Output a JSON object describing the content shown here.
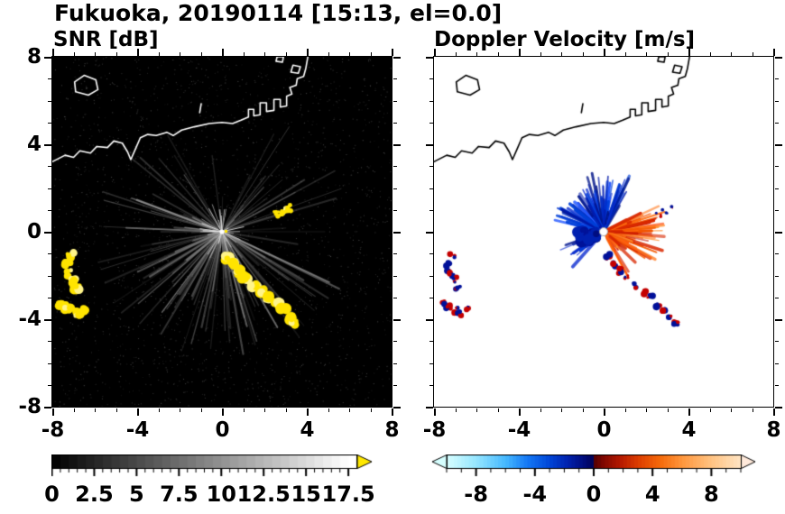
{
  "title": "Fukuoka, 20190114 [15:13, el=0.0]",
  "panels": {
    "snr": {
      "title": "SNR [dB]",
      "background": "#000000"
    },
    "doppler": {
      "title": "Doppler Velocity [m/s]",
      "background": "#ffffff"
    }
  },
  "axes": {
    "xlim": [
      -8,
      8
    ],
    "ylim": [
      -8,
      8
    ],
    "xticks": [
      "-8",
      "-4",
      "0",
      "4",
      "8"
    ],
    "yticks": [
      "8",
      "4",
      "0",
      "-4",
      "-8"
    ],
    "minor_tick_step": 1
  },
  "colorbars": {
    "snr": {
      "min": 0,
      "max": 18,
      "minor_step": 0.5,
      "tick_values": [
        0,
        2.5,
        5,
        7.5,
        10,
        12.5,
        15,
        17.5
      ],
      "tick_labels": [
        "0",
        "2.5",
        "5",
        "7.5",
        "10",
        "12.5",
        "15",
        "17.5"
      ],
      "palette": "black-to-white grayscale",
      "over_color": "#ffe800"
    },
    "doppler": {
      "min": -10,
      "max": 10,
      "minor_step": 1,
      "tick_values": [
        -8,
        -4,
        0,
        4,
        8
      ],
      "tick_labels": [
        "-8",
        "-4",
        "0",
        "4",
        "8"
      ],
      "palette": "light-cyan / blue (negative) to dark red / orange (positive)",
      "under_color": "#d6ffff",
      "over_color": "#ffe9da"
    }
  },
  "chart_data": {
    "type": "heatmap",
    "subtype": "radar_ppi_pair",
    "title": "Fukuoka, 20190114 [15:13, el=0.0]",
    "xlim": [
      -8,
      8
    ],
    "ylim": [
      -8,
      8
    ],
    "xticks": [
      -8,
      -4,
      0,
      4,
      8
    ],
    "yticks": [
      -8,
      -4,
      0,
      4,
      8
    ],
    "radar_center": [
      0,
      0
    ],
    "panels": [
      {
        "id": "snr",
        "title": "SNR [dB]",
        "background": "#000000",
        "coast_color": "#ffffff",
        "colorbar": {
          "min": 0,
          "max": 18,
          "major_ticks": [
            0,
            2.5,
            5,
            7.5,
            10,
            12.5,
            15,
            17.5
          ],
          "minor_step": 0.5,
          "palette": "grayscale",
          "over_arrow_color": "#ffe800"
        },
        "description": "grayscale radial clutter fan centered on radar; saturated yellow (>17.5 dB) patches at the feature locations"
      },
      {
        "id": "doppler",
        "title": "Doppler Velocity [m/s]",
        "background": "#ffffff",
        "coast_color": "#000000",
        "colorbar": {
          "min": -10,
          "max": 10,
          "major_ticks": [
            -8,
            -4,
            0,
            4,
            8
          ],
          "minor_step": 1,
          "under_arrow_color": "#d6ffff",
          "over_arrow_color": "#ffe9da"
        },
        "description": "negative (blue, about -8..-3 m/s) echoes in the up / upper-left sector, positive (orange-red, about +3..+8 m/s) in the right sector; red-blue speckles at feature locations"
      }
    ],
    "coastline": [
      [
        -8,
        3.2
      ],
      [
        -7.4,
        3.5
      ],
      [
        -7.0,
        3.4
      ],
      [
        -6.7,
        3.7
      ],
      [
        -6.2,
        3.6
      ],
      [
        -5.9,
        3.9
      ],
      [
        -5.4,
        3.85
      ],
      [
        -5.1,
        4.15
      ],
      [
        -4.7,
        4.05
      ],
      [
        -4.45,
        3.65
      ],
      [
        -4.3,
        3.3
      ],
      [
        -4.05,
        3.85
      ],
      [
        -3.85,
        4.3
      ],
      [
        -3.5,
        4.45
      ],
      [
        -3.1,
        4.4
      ],
      [
        -2.6,
        4.55
      ],
      [
        -2.3,
        4.4
      ],
      [
        -1.9,
        4.65
      ],
      [
        -1.3,
        4.8
      ],
      [
        -0.6,
        4.95
      ],
      [
        0,
        5.0
      ],
      [
        0.5,
        4.95
      ],
      [
        0.9,
        5.1
      ],
      [
        1.25,
        5.25
      ],
      [
        1.25,
        5.6
      ],
      [
        1.5,
        5.6
      ],
      [
        1.5,
        5.3
      ],
      [
        1.8,
        5.35
      ],
      [
        1.8,
        5.9
      ],
      [
        2.1,
        5.9
      ],
      [
        2.1,
        5.5
      ],
      [
        2.45,
        5.55
      ],
      [
        2.45,
        6.05
      ],
      [
        2.75,
        6.05
      ],
      [
        2.75,
        5.7
      ],
      [
        3.05,
        5.75
      ],
      [
        3.05,
        6.2
      ],
      [
        3.3,
        6.3
      ],
      [
        3.2,
        6.6
      ],
      [
        3.5,
        6.7
      ],
      [
        3.55,
        7.0
      ],
      [
        3.85,
        7.1
      ],
      [
        3.95,
        7.45
      ],
      [
        4.05,
        8.0
      ]
    ],
    "island": [
      [
        -6.9,
        6.4
      ],
      [
        -6.3,
        6.25
      ],
      [
        -5.85,
        6.5
      ],
      [
        -5.95,
        6.95
      ],
      [
        -6.5,
        7.15
      ],
      [
        -6.95,
        6.85
      ]
    ],
    "dock_shapes": [
      [
        [
          3.25,
          7.3
        ],
        [
          3.6,
          7.25
        ],
        [
          3.7,
          7.55
        ],
        [
          3.35,
          7.62
        ]
      ],
      [
        [
          2.55,
          7.8
        ],
        [
          2.85,
          7.75
        ],
        [
          2.9,
          8.0
        ],
        [
          2.6,
          8.0
        ]
      ],
      [
        [
          -1.05,
          5.45
        ],
        [
          -0.98,
          5.85
        ]
      ]
    ],
    "features": {
      "west_arc": [
        [
          -7.15,
          -1.1
        ],
        [
          -7.3,
          -1.5
        ],
        [
          -7.25,
          -1.9
        ],
        [
          -7.0,
          -2.2
        ],
        [
          -6.85,
          -2.55
        ]
      ],
      "west_blob": [
        [
          -7.6,
          -3.25
        ],
        [
          -7.3,
          -3.45
        ],
        [
          -7.0,
          -3.6
        ],
        [
          -6.75,
          -3.75
        ],
        [
          -6.4,
          -3.5
        ]
      ],
      "southeast_chain": [
        [
          0.2,
          -1.15
        ],
        [
          0.5,
          -1.5
        ],
        [
          0.8,
          -1.8
        ],
        [
          1.1,
          -2.1
        ],
        [
          1.5,
          -2.45
        ],
        [
          1.9,
          -2.75
        ],
        [
          2.2,
          -3.0
        ],
        [
          2.6,
          -3.35
        ],
        [
          2.9,
          -3.6
        ],
        [
          3.2,
          -3.9
        ],
        [
          3.4,
          -4.15
        ]
      ],
      "northeast_streak": [
        [
          2.6,
          0.8
        ],
        [
          2.9,
          0.95
        ],
        [
          3.15,
          1.1
        ]
      ]
    },
    "fan_sectors_snr": [
      [
        150,
        200,
        22
      ],
      [
        200,
        250,
        28
      ],
      [
        250,
        300,
        30
      ],
      [
        300,
        345,
        18
      ],
      [
        15,
        60,
        14
      ],
      [
        60,
        150,
        8
      ],
      [
        0,
        360,
        15
      ]
    ],
    "fan_sectors_doppler": {
      "negative": [
        [
          58,
          112,
          55,
          68
        ],
        [
          112,
          168,
          40,
          58
        ],
        [
          196,
          232,
          16,
          52
        ]
      ],
      "positive": [
        [
          325,
          388,
          70,
          72
        ],
        [
          295,
          325,
          16,
          58
        ]
      ]
    },
    "doppler_palette": [
      [
        -10,
        215,
        255,
        255
      ],
      [
        -8,
        150,
        230,
        255
      ],
      [
        -6,
        70,
        185,
        255
      ],
      [
        -4.5,
        20,
        120,
        245
      ],
      [
        -3,
        0,
        70,
        215
      ],
      [
        -1.8,
        0,
        35,
        175
      ],
      [
        -0.7,
        0,
        12,
        125
      ],
      [
        -0.02,
        0,
        2,
        85
      ],
      [
        0.02,
        85,
        0,
        0
      ],
      [
        0.7,
        130,
        8,
        0
      ],
      [
        1.8,
        180,
        25,
        0
      ],
      [
        3,
        220,
        60,
        0
      ],
      [
        4.5,
        245,
        105,
        10
      ],
      [
        6,
        255,
        150,
        60
      ],
      [
        8,
        255,
        195,
        130
      ],
      [
        10,
        255,
        228,
        195
      ]
    ]
  }
}
